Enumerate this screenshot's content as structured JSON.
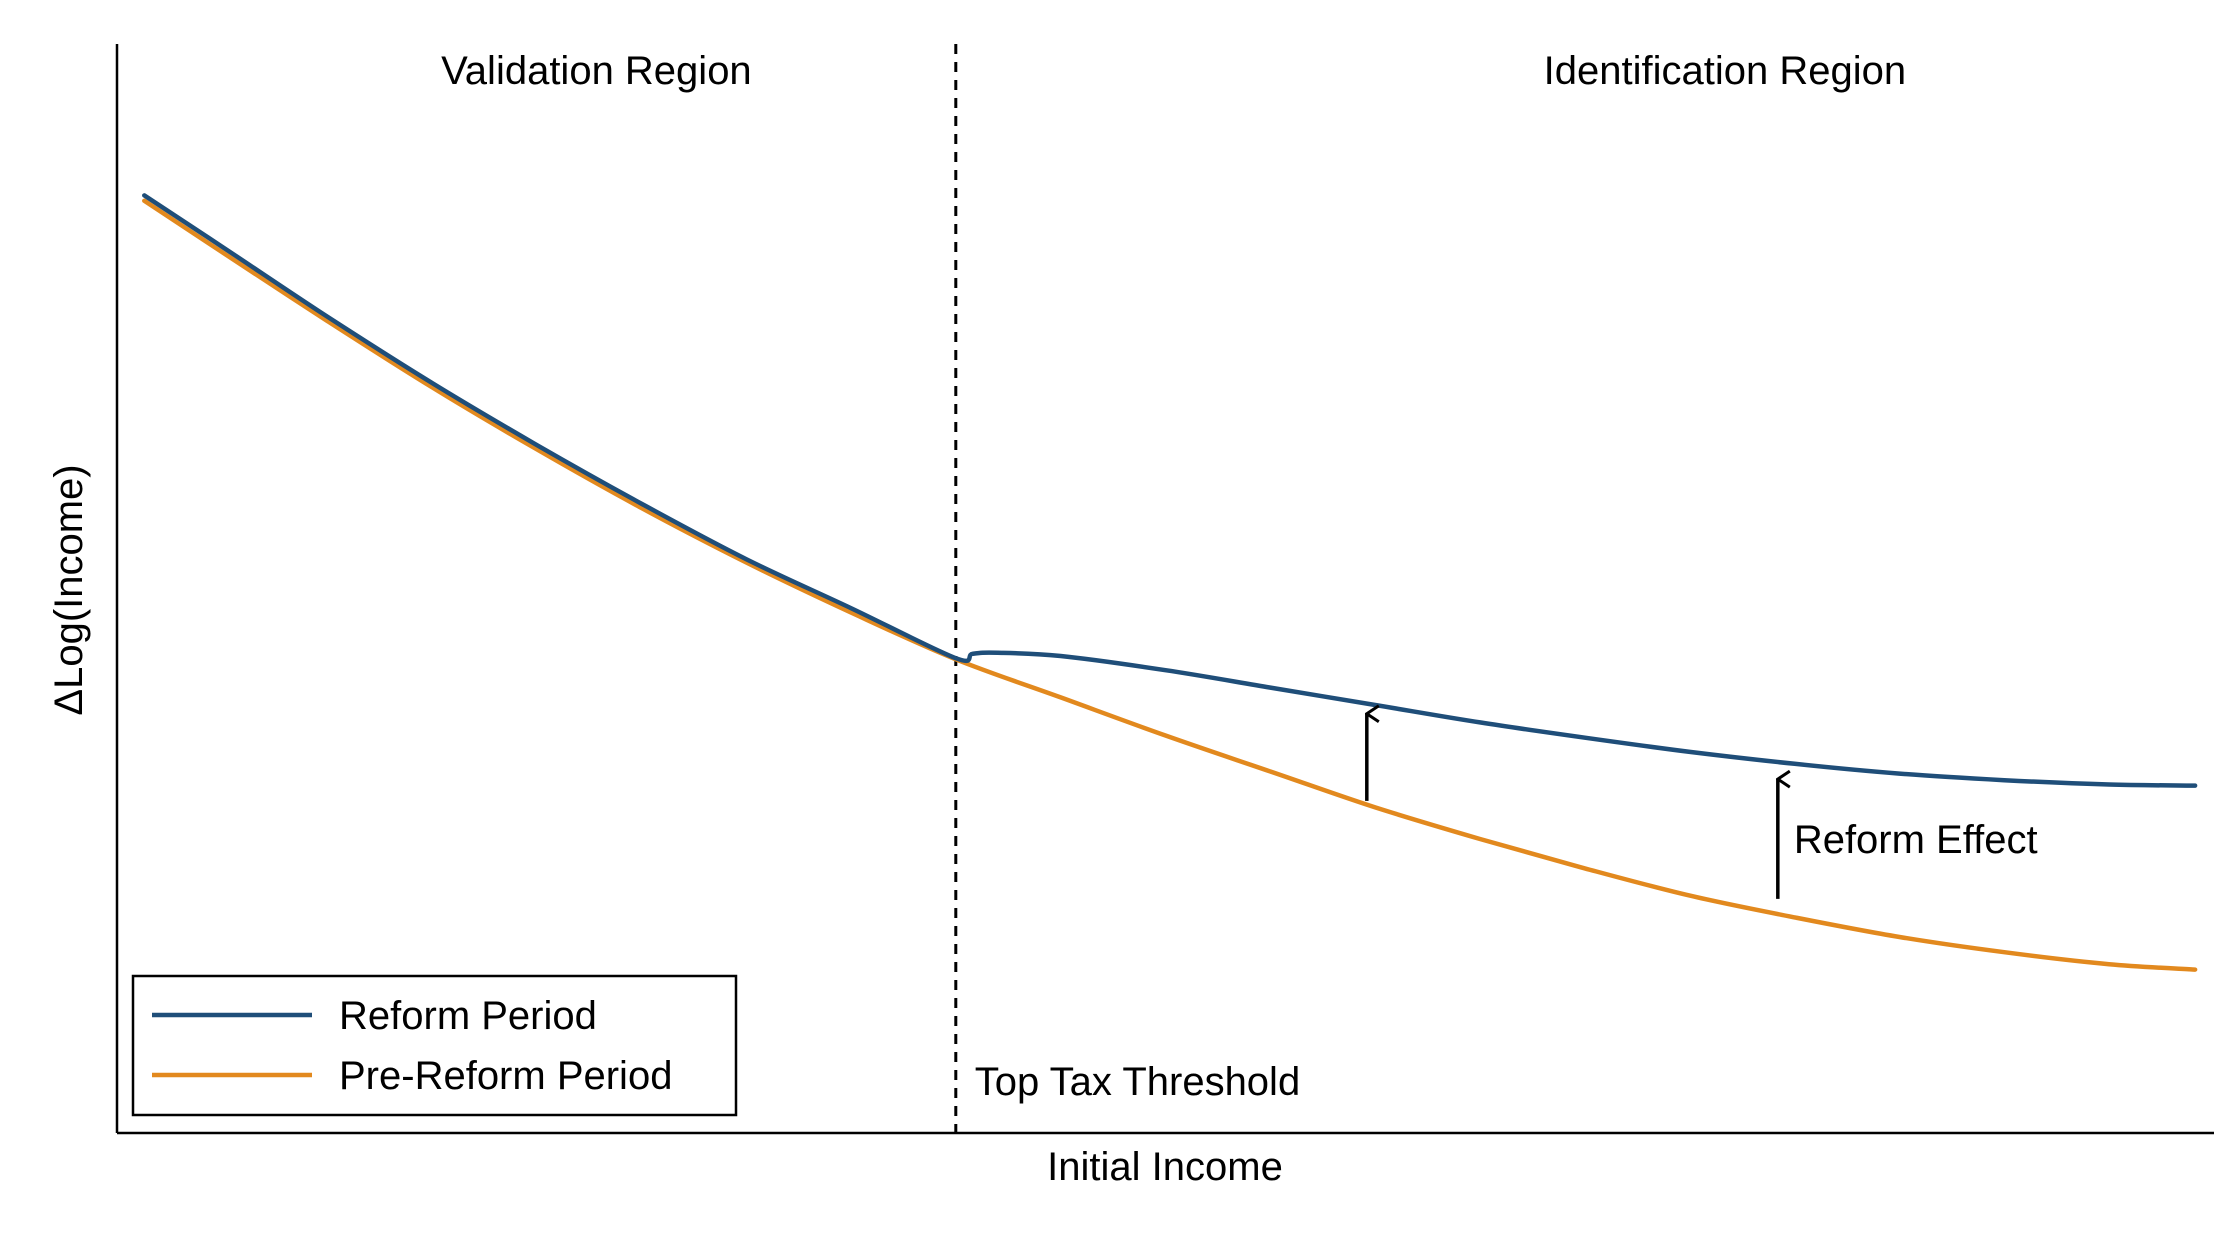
{
  "chart_data": {
    "type": "line",
    "title": "",
    "xlabel": "Initial Income",
    "ylabel": "ΔLog(Income)",
    "xlim": [
      0,
      100
    ],
    "ylim": [
      0,
      100
    ],
    "grid": false,
    "ticks_shown": false,
    "legend_position": "bottom-left",
    "threshold": {
      "x": 40,
      "label": "Top Tax Threshold",
      "style": "dashed"
    },
    "regions": [
      {
        "label": "Validation Region",
        "side": "left"
      },
      {
        "label": "Identification Region",
        "side": "right"
      }
    ],
    "annotations": [
      {
        "type": "arrow",
        "x": 59.6,
        "y_from": 30.5,
        "y_to": 38.5,
        "label": ""
      },
      {
        "type": "arrow",
        "x": 79.2,
        "y_from": 21.5,
        "y_to": 32.5,
        "label": "Reform Effect"
      }
    ],
    "series": [
      {
        "name": "Reform Period",
        "color": "#1f4e79",
        "x": [
          1.3,
          5,
          10,
          15,
          20,
          25,
          30,
          35,
          40,
          40.8,
          42,
          45,
          50,
          55,
          60,
          65,
          70,
          75,
          80,
          85,
          90,
          95,
          99.1
        ],
        "y": [
          86.1,
          81.4,
          75.0,
          68.9,
          63.2,
          57.8,
          52.7,
          48.2,
          43.6,
          44.0,
          44.1,
          43.8,
          42.5,
          40.9,
          39.3,
          37.7,
          36.3,
          35.0,
          33.9,
          33.0,
          32.4,
          32.0,
          31.9
        ]
      },
      {
        "name": "Pre-Reform Period",
        "color": "#e2891e",
        "x": [
          1.3,
          5,
          10,
          15,
          20,
          25,
          30,
          35,
          40,
          45,
          50,
          55,
          60,
          65,
          70,
          75,
          80,
          85,
          90,
          95,
          99.1
        ],
        "y": [
          85.6,
          80.9,
          74.6,
          68.5,
          62.8,
          57.4,
          52.4,
          47.8,
          43.5,
          40.0,
          36.5,
          33.2,
          29.9,
          27.0,
          24.3,
          21.8,
          19.8,
          18.0,
          16.6,
          15.5,
          15.0
        ]
      }
    ]
  }
}
